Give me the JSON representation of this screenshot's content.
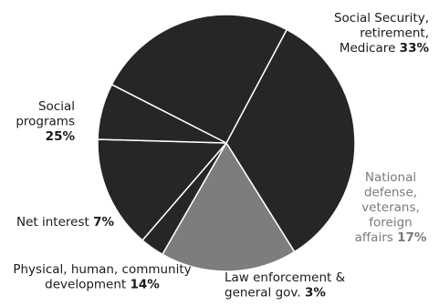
{
  "chart_data": {
    "type": "pie",
    "title": "",
    "slices": [
      {
        "lines": [
          "Social Security,",
          "retirement,",
          "Medicare"
        ],
        "pct_text": "33%",
        "value": 33,
        "color": "#262626",
        "label_color": "#1a1a1a"
      },
      {
        "lines": [
          "National",
          "defense,",
          "veterans,",
          "foreign",
          "affairs"
        ],
        "pct_text": "17%",
        "value": 17,
        "color": "#7d7d7d",
        "label_color": "#7a7a7a"
      },
      {
        "lines": [
          "Law enforcement &",
          "general gov."
        ],
        "pct_text": "3%",
        "value": 3,
        "color": "#262626",
        "label_color": "#1a1a1a"
      },
      {
        "lines": [
          "Physical, human, community",
          "development"
        ],
        "pct_text": "14%",
        "value": 14,
        "color": "#262626",
        "label_color": "#1a1a1a"
      },
      {
        "lines": [
          "Net interest"
        ],
        "pct_text": "7%",
        "value": 7,
        "color": "#262626",
        "label_color": "#1a1a1a"
      },
      {
        "lines": [
          "Social",
          "programs"
        ],
        "pct_text": "25%",
        "value": 25,
        "color": "#262626",
        "label_color": "#1a1a1a"
      }
    ]
  }
}
